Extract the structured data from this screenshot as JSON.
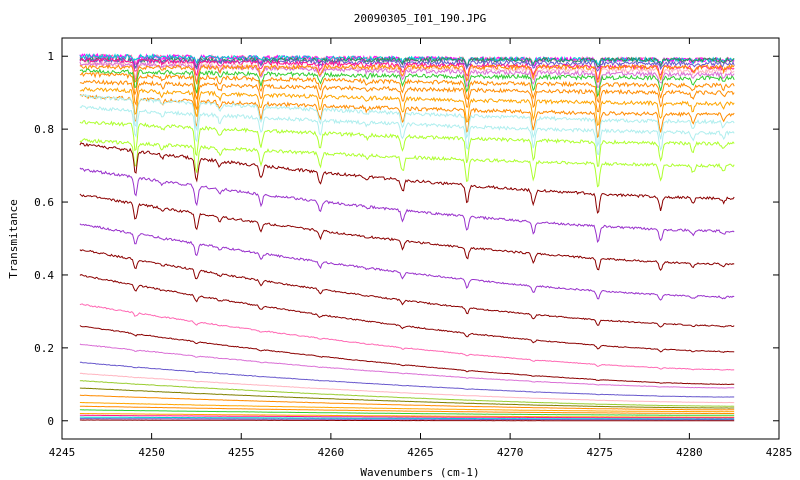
{
  "chart_data": {
    "type": "line",
    "title": "20090305_I01_190.JPG",
    "xlabel": "Wavenumbers (cm-1)",
    "ylabel": "Transmitance",
    "xlim": [
      4245,
      4285
    ],
    "ylim": [
      -0.05,
      1.05
    ],
    "x_ticks": [
      4245,
      4250,
      4255,
      4260,
      4265,
      4270,
      4275,
      4280,
      4285
    ],
    "y_ticks": [
      0,
      0.2,
      0.4,
      0.6,
      0.8,
      1
    ],
    "x_tick_labels": [
      "4245",
      "4250",
      "4255",
      "4260",
      "4265",
      "4270",
      "4275",
      "4280",
      "4285"
    ],
    "y_tick_labels": [
      "0",
      "0.2",
      "0.4",
      "0.6",
      "0.8",
      "1"
    ],
    "x_range": [
      4246.0,
      4282.5
    ],
    "absorption_lines": [
      {
        "x": 4249.1,
        "depth": 0.9
      },
      {
        "x": 4250.6,
        "depth": 0.15
      },
      {
        "x": 4252.5,
        "depth": 1.0
      },
      {
        "x": 4253.8,
        "depth": 0.25
      },
      {
        "x": 4256.1,
        "depth": 0.55
      },
      {
        "x": 4259.4,
        "depth": 0.5
      },
      {
        "x": 4262.0,
        "depth": 0.12
      },
      {
        "x": 4264.0,
        "depth": 0.55
      },
      {
        "x": 4267.6,
        "depth": 0.85
      },
      {
        "x": 4271.3,
        "depth": 0.7
      },
      {
        "x": 4274.9,
        "depth": 0.95
      },
      {
        "x": 4278.4,
        "depth": 0.65
      },
      {
        "x": 4280.2,
        "depth": 0.3
      },
      {
        "x": 4281.9,
        "depth": 0.2
      }
    ],
    "series": [
      {
        "color": "#ff69b4",
        "start": 1.0,
        "end": 0.99,
        "line_scale": 0.02
      },
      {
        "color": "#ff00ff",
        "start": 1.0,
        "end": 0.99,
        "line_scale": 0.025
      },
      {
        "color": "#00ced1",
        "start": 1.0,
        "end": 0.99,
        "line_scale": 0.015
      },
      {
        "color": "#2e8b57",
        "start": 0.99,
        "end": 0.99,
        "line_scale": 0.02
      },
      {
        "color": "#6a5acd",
        "start": 0.99,
        "end": 0.98,
        "line_scale": 0.02
      },
      {
        "color": "#ff1493",
        "start": 0.99,
        "end": 0.97,
        "line_scale": 0.035
      },
      {
        "color": "#ffb6c1",
        "start": 0.98,
        "end": 0.96,
        "line_scale": 0.04
      },
      {
        "color": "#da70d6",
        "start": 0.98,
        "end": 0.95,
        "line_scale": 0.045
      },
      {
        "color": "#ff8c00",
        "start": 0.97,
        "end": 0.97,
        "line_scale": 0.045
      },
      {
        "color": "#32cd32",
        "start": 0.96,
        "end": 0.94,
        "line_scale": 0.055
      },
      {
        "color": "#ff8c00",
        "start": 0.95,
        "end": 0.92,
        "line_scale": 0.06
      },
      {
        "color": "#ff8c00",
        "start": 0.93,
        "end": 0.9,
        "line_scale": 0.07
      },
      {
        "color": "#ffa500",
        "start": 0.91,
        "end": 0.87,
        "line_scale": 0.08
      },
      {
        "color": "#ff8c00",
        "start": 0.89,
        "end": 0.84,
        "line_scale": 0.085
      },
      {
        "color": "#afeeee",
        "start": 0.89,
        "end": 0.82,
        "line_scale": 0.09
      },
      {
        "color": "#afeeee",
        "start": 0.86,
        "end": 0.79,
        "line_scale": 0.095
      },
      {
        "color": "#adff2f",
        "start": 0.82,
        "end": 0.76,
        "line_scale": 0.1
      },
      {
        "color": "#adff2f",
        "start": 0.77,
        "end": 0.7,
        "line_scale": 0.1
      },
      {
        "color": "#8b0000",
        "start": 0.76,
        "end": 0.61,
        "line_scale": 0.09
      },
      {
        "color": "#9932cc",
        "start": 0.69,
        "end": 0.52,
        "line_scale": 0.085
      },
      {
        "color": "#8b0000",
        "start": 0.62,
        "end": 0.43,
        "line_scale": 0.08
      },
      {
        "color": "#9932cc",
        "start": 0.54,
        "end": 0.34,
        "line_scale": 0.07
      },
      {
        "color": "#8b0000",
        "start": 0.47,
        "end": 0.26,
        "line_scale": 0.06
      },
      {
        "color": "#8b0000",
        "start": 0.4,
        "end": 0.19,
        "line_scale": 0.05
      },
      {
        "color": "#ff69b4",
        "start": 0.32,
        "end": 0.14,
        "line_scale": 0.035
      },
      {
        "color": "#8b0000",
        "start": 0.26,
        "end": 0.1,
        "line_scale": 0.025
      },
      {
        "color": "#da70d6",
        "start": 0.21,
        "end": 0.09,
        "line_scale": 0.02
      },
      {
        "color": "#6a5acd",
        "start": 0.16,
        "end": 0.065,
        "line_scale": 0.015
      },
      {
        "color": "#ffb6c1",
        "start": 0.13,
        "end": 0.05,
        "line_scale": 0.01
      },
      {
        "color": "#9acd32",
        "start": 0.11,
        "end": 0.04,
        "line_scale": 0.008
      },
      {
        "color": "#808000",
        "start": 0.09,
        "end": 0.035,
        "line_scale": 0.006
      },
      {
        "color": "#ff8c00",
        "start": 0.07,
        "end": 0.03,
        "line_scale": 0.004
      },
      {
        "color": "#ffa500",
        "start": 0.05,
        "end": 0.025,
        "line_scale": 0.003
      },
      {
        "color": "#ff8c00",
        "start": 0.04,
        "end": 0.02,
        "line_scale": 0.002
      },
      {
        "color": "#32cd32",
        "start": 0.03,
        "end": 0.015,
        "line_scale": 0.002
      },
      {
        "color": "#ffa500",
        "start": 0.02,
        "end": 0.01,
        "line_scale": 0.001
      },
      {
        "color": "#ff1493",
        "start": 0.015,
        "end": 0.008,
        "line_scale": 0.001
      },
      {
        "color": "#00ced1",
        "start": 0.01,
        "end": 0.005,
        "line_scale": 0.001
      },
      {
        "color": "#6a5acd",
        "start": 0.006,
        "end": 0.003,
        "line_scale": 0.001
      },
      {
        "color": "#8b0000",
        "start": 0.002,
        "end": 0.0,
        "line_scale": 0.001
      }
    ],
    "grid": false,
    "legend": "none"
  }
}
